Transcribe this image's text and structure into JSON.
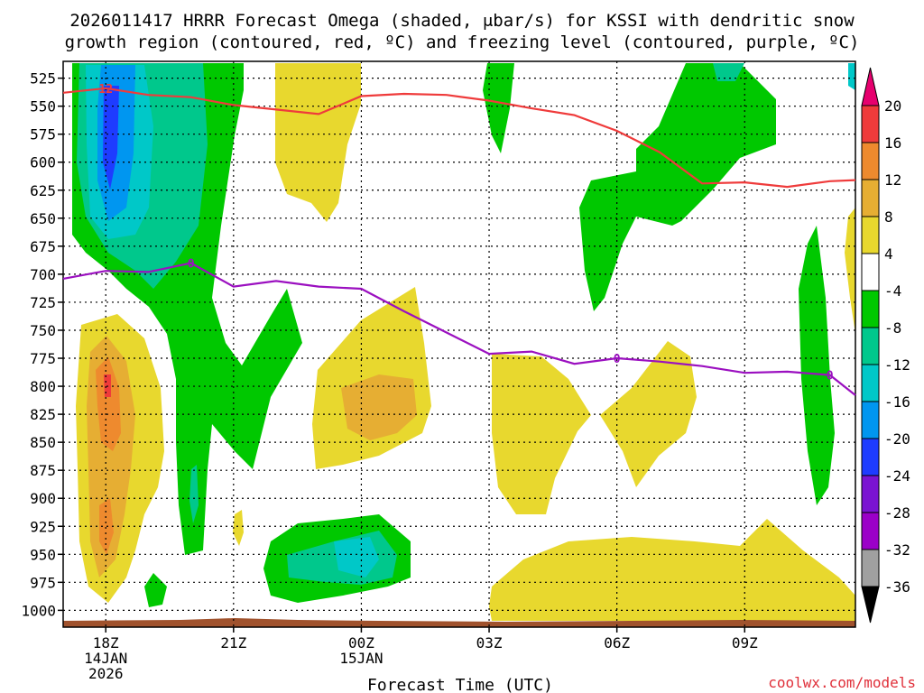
{
  "chart_data": {
    "type": "heatmap",
    "title_line1": "2026011417 HRRR Forecast Omega (shaded, μbar/s) for KSSI with dendritic snow",
    "title_line2": "growth region (contoured, red, ºC) and freezing level (contoured, purple, ºC)",
    "xlabel": "Forecast Time (UTC)",
    "credit": "coolwx.com/models",
    "y_ticks": [
      "525",
      "550",
      "575",
      "600",
      "625",
      "650",
      "675",
      "700",
      "725",
      "750",
      "775",
      "800",
      "825",
      "850",
      "875",
      "900",
      "925",
      "950",
      "975",
      "1000"
    ],
    "x_ticks": [
      {
        "hour": 18,
        "label": "18Z",
        "sub1": "14JAN",
        "sub2": "2026"
      },
      {
        "hour": 21,
        "label": "21Z",
        "sub1": "",
        "sub2": ""
      },
      {
        "hour": 24,
        "label": "00Z",
        "sub1": "15JAN",
        "sub2": ""
      },
      {
        "hour": 27,
        "label": "03Z",
        "sub1": "",
        "sub2": ""
      },
      {
        "hour": 30,
        "label": "06Z",
        "sub1": "",
        "sub2": ""
      },
      {
        "hour": 33,
        "label": "09Z",
        "sub1": "",
        "sub2": ""
      }
    ],
    "xlim": [
      17,
      35.6
    ],
    "ylim_hpa": [
      510,
      1015
    ],
    "colorbar": {
      "levels": [
        "20",
        "16",
        "12",
        "8",
        "4",
        "-4",
        "-8",
        "-12",
        "-16",
        "-20",
        "-24",
        "-28",
        "-32",
        "-36"
      ],
      "colors": [
        "#e6006e",
        "#ef3b3b",
        "#ee8a2e",
        "#e6ae33",
        "#e8d82e",
        "#ffffff",
        "#00c800",
        "#00c88c",
        "#00c8c8",
        "#0096f0",
        "#1e3cff",
        "#7a14d2",
        "#9b00c8",
        "#a0a0a0",
        "#000000"
      ]
    },
    "series": [
      {
        "name": "dendritic growth region -12C",
        "color": "#ef3b3b",
        "label": "-12",
        "points": [
          [
            17,
            538
          ],
          [
            18,
            534
          ],
          [
            19,
            540
          ],
          [
            20,
            542
          ],
          [
            21,
            549
          ],
          [
            22,
            553
          ],
          [
            23,
            557
          ],
          [
            24,
            541
          ],
          [
            25,
            539
          ],
          [
            26,
            540
          ],
          [
            27,
            545
          ],
          [
            28,
            552
          ],
          [
            29,
            558
          ],
          [
            30,
            572
          ],
          [
            31,
            591
          ],
          [
            32,
            619
          ],
          [
            33,
            618
          ],
          [
            34,
            622
          ],
          [
            35,
            617
          ],
          [
            35.6,
            616
          ]
        ]
      },
      {
        "name": "freezing level 0C",
        "color": "#9b10c0",
        "label": "0",
        "points": [
          [
            17,
            704
          ],
          [
            18,
            697
          ],
          [
            19,
            698
          ],
          [
            20,
            690
          ],
          [
            21,
            711
          ],
          [
            22,
            706
          ],
          [
            23,
            711
          ],
          [
            24,
            713
          ],
          [
            25,
            733
          ],
          [
            26,
            752
          ],
          [
            27,
            771
          ],
          [
            28,
            769
          ],
          [
            29,
            780
          ],
          [
            30,
            775
          ],
          [
            31,
            778
          ],
          [
            32,
            782
          ],
          [
            33,
            788
          ],
          [
            34,
            787
          ],
          [
            35,
            790
          ],
          [
            35.6,
            808
          ]
        ]
      }
    ]
  }
}
